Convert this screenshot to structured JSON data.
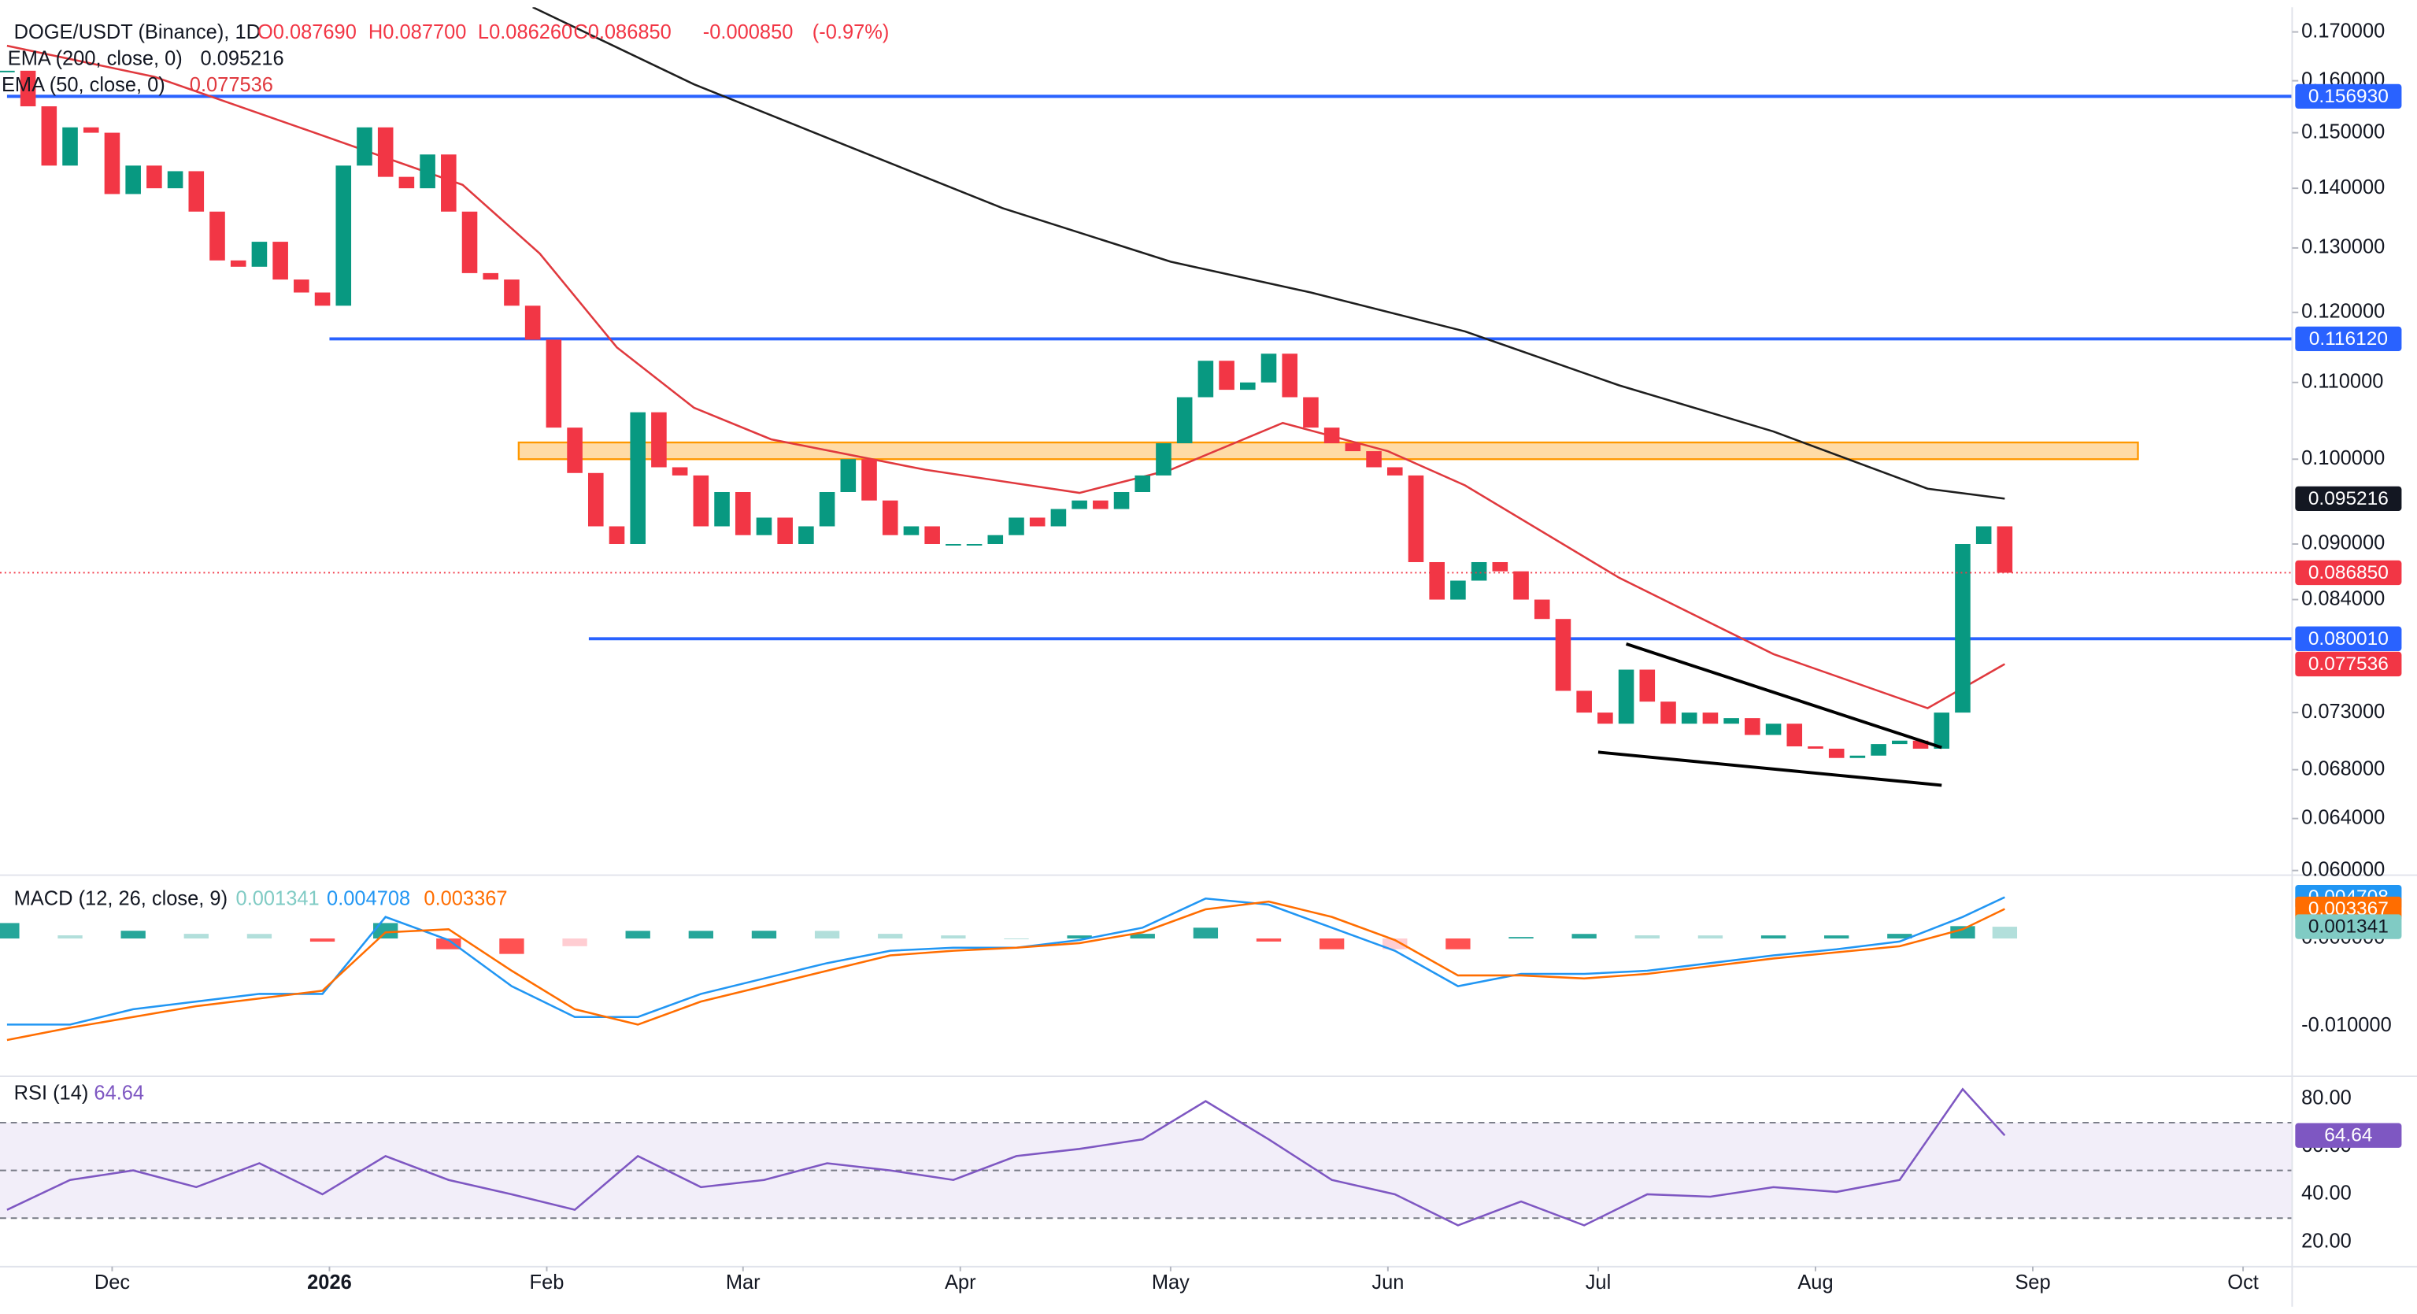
{
  "chart_data": [
    {
      "type": "candlestick",
      "title": "DOGE/USDT (Binance), 1D",
      "ohlc": [
        {
          "value": 0.08769,
          "label": "O0.087690"
        },
        {
          "value": 0.0877,
          "label": "H0.087700"
        },
        {
          "value": 0.08626,
          "label": "L0.086260"
        },
        {
          "value": 0.08685,
          "label": "C0.086850"
        }
      ],
      "change": {
        "value": -0.00085,
        "label": "-0.000850"
      },
      "change_pct": {
        "value": -0.97,
        "label": "(-0.97%)"
      },
      "header_color": "#f23645",
      "log_scale": true,
      "xlim": [
        -1,
        326
      ],
      "ylim": [
        0.06,
        0.17
      ],
      "yticks": [
        {
          "value": 0.17,
          "label": "0.170000"
        },
        {
          "value": 0.16,
          "label": "0.160000"
        },
        {
          "value": 0.15,
          "label": "0.150000"
        },
        {
          "value": 0.14,
          "label": "0.140000"
        },
        {
          "value": 0.13,
          "label": "0.130000"
        },
        {
          "value": 0.12,
          "label": "0.120000"
        },
        {
          "value": 0.11,
          "label": "0.110000"
        },
        {
          "value": 0.1,
          "label": "0.100000"
        },
        {
          "value": 0.09,
          "label": "0.090000"
        },
        {
          "value": 0.084,
          "label": "0.084000"
        },
        {
          "value": 0.073,
          "label": "0.073000"
        },
        {
          "value": 0.068,
          "label": "0.068000"
        },
        {
          "value": 0.064,
          "label": "0.064000"
        },
        {
          "value": 0.06,
          "label": "0.060000"
        }
      ],
      "up_color": "#089981",
      "down_color": "#f23645",
      "x": [
        0,
        3,
        6,
        9,
        12,
        15,
        18,
        21,
        24,
        27,
        30,
        33,
        36,
        39,
        42,
        45,
        48,
        51,
        54,
        57,
        60,
        63,
        66,
        69,
        72,
        75,
        78,
        81,
        84,
        87,
        90,
        93,
        96,
        99,
        102,
        105,
        108,
        111,
        114,
        117,
        120,
        123,
        126,
        129,
        132,
        135,
        138,
        141,
        144,
        147,
        150,
        153,
        156,
        159,
        162,
        165,
        168,
        171,
        174,
        177,
        180,
        183,
        186,
        189,
        192,
        195,
        198,
        201,
        204,
        207,
        210,
        213,
        216,
        219,
        222,
        225,
        228,
        231,
        234,
        237,
        240,
        243,
        246,
        249,
        252,
        255,
        258,
        261,
        264,
        267,
        270,
        273,
        276,
        279,
        282,
        285
      ],
      "close": [
        0.162,
        0.155,
        0.144,
        0.151,
        0.15,
        0.139,
        0.144,
        0.14,
        0.143,
        0.136,
        0.128,
        0.127,
        0.131,
        0.125,
        0.123,
        0.121,
        0.144,
        0.151,
        0.142,
        0.14,
        0.146,
        0.136,
        0.126,
        0.125,
        0.121,
        0.116,
        0.104,
        0.0983,
        0.092,
        0.09,
        0.106,
        0.099,
        0.098,
        0.092,
        0.096,
        0.091,
        0.093,
        0.09,
        0.092,
        0.096,
        0.1,
        0.095,
        0.091,
        0.092,
        0.09,
        0.09,
        0.09,
        0.091,
        0.093,
        0.092,
        0.094,
        0.095,
        0.094,
        0.096,
        0.098,
        0.102,
        0.108,
        0.113,
        0.109,
        0.11,
        0.114,
        0.108,
        0.104,
        0.102,
        0.101,
        0.099,
        0.098,
        0.088,
        0.084,
        0.086,
        0.088,
        0.087,
        0.084,
        0.082,
        0.075,
        0.073,
        0.072,
        0.077,
        0.074,
        0.072,
        0.073,
        0.072,
        0.0725,
        0.071,
        0.072,
        0.07,
        0.0698,
        0.069,
        0.0692,
        0.0702,
        0.0705,
        0.0698,
        0.073,
        0.09,
        0.092,
        0.08685
      ],
      "last_price": {
        "value": 0.08685,
        "label": "0.086850",
        "color": "#f23645"
      },
      "lines": [
        {
          "name": "EMA (200, close, 0)",
          "color": "#1e1e1e",
          "box_color": "#131722",
          "x": [
            75,
            98,
            120,
            142,
            166,
            186,
            208,
            230,
            252,
            274,
            285
          ],
          "values": [
            0.1753,
            0.1593,
            0.1475,
            0.1366,
            0.1278,
            0.123,
            0.1172,
            0.1096,
            0.1035,
            0.0964,
            0.095216
          ]
        },
        {
          "name": "EMA (50, close, 0)",
          "color": "#e0393e",
          "box_color": "#f23645",
          "x": [
            0,
            21,
            43,
            65,
            76,
            87,
            98,
            109,
            131,
            153,
            166,
            182,
            197,
            208,
            230,
            252,
            274,
            285
          ],
          "values": [
            0.1671,
            0.1608,
            0.1504,
            0.1406,
            0.1291,
            0.1149,
            0.1066,
            0.1025,
            0.0987,
            0.0959,
            0.0987,
            0.1046,
            0.101,
            0.0968,
            0.0863,
            0.0785,
            0.0734,
            0.077536
          ]
        }
      ],
      "levels": [
        {
          "value": 0.15693,
          "label": "0.156930",
          "x": 0
        },
        {
          "value": 0.11612,
          "label": "0.116120",
          "x": 46
        },
        {
          "value": 0.08001,
          "label": "0.080010",
          "x": 83
        }
      ],
      "level_color": "#2962ff",
      "zone": {
        "x": [
          73,
          304
        ],
        "values": [
          0.1,
          0.1021
        ],
        "color": "#ff9800"
      },
      "trendlines": [
        {
          "x": [
            231,
            276
          ],
          "values": [
            0.0795,
            0.0699
          ]
        },
        {
          "x": [
            227,
            276
          ],
          "values": [
            0.0695,
            0.0667
          ]
        }
      ]
    },
    {
      "type": "macd",
      "title": "MACD (12, 26, close, 9)",
      "xlim": [
        -1,
        326
      ],
      "ylim": [
        -0.0151,
        0.0067
      ],
      "yticks": [
        {
          "value": 0,
          "label": "0.000000"
        },
        {
          "value": -0.01,
          "label": "-0.010000"
        }
      ],
      "x": [
        0,
        9,
        18,
        27,
        36,
        45,
        54,
        63,
        72,
        81,
        90,
        99,
        108,
        117,
        126,
        135,
        144,
        153,
        162,
        171,
        180,
        189,
        198,
        207,
        216,
        225,
        234,
        243,
        252,
        261,
        270,
        279,
        285
      ],
      "macd": [
        -0.00982,
        -0.00982,
        -0.00807,
        -0.00719,
        -0.00632,
        -0.00632,
        0.00246,
        -0.00018,
        -0.00544,
        -0.00895,
        -0.00895,
        -0.00632,
        -0.00456,
        -0.00281,
        -0.0014,
        -0.00105,
        -0.00105,
        -0.00018,
        0.00123,
        0.00456,
        0.00386,
        0.00123,
        -0.0014,
        -0.00544,
        -0.00404,
        -0.00404,
        -0.00368,
        -0.00281,
        -0.00193,
        -0.00123,
        -0.00035,
        0.00246,
        0.004708
      ],
      "signal": [
        -0.01158,
        -0.01018,
        -0.00895,
        -0.00772,
        -0.00684,
        -0.00596,
        0.0007,
        0.00105,
        -0.00368,
        -0.00807,
        -0.00982,
        -0.00719,
        -0.00544,
        -0.00368,
        -0.00193,
        -0.0014,
        -0.00105,
        -0.00053,
        0.0007,
        0.00333,
        0.00421,
        0.00246,
        -0.00018,
        -0.00421,
        -0.00421,
        -0.00456,
        -0.00404,
        -0.00316,
        -0.00228,
        -0.00158,
        -0.00088,
        0.00105,
        0.003367
      ],
      "histogram": [
        0.00176,
        0.00036,
        0.00088,
        0.00053,
        0.00052,
        -0.00036,
        0.00176,
        -0.00123,
        -0.00176,
        -0.00088,
        0.00087,
        0.00087,
        0.00088,
        0.00087,
        0.00053,
        0.00035,
        0,
        0.00035,
        0.00053,
        0.00123,
        -0.00035,
        -0.00123,
        -0.00122,
        -0.00123,
        0.00017,
        0.00052,
        0.00036,
        0.00035,
        0.00035,
        0.00035,
        0.00053,
        0.00141,
        0.001341
      ],
      "macd_color": "#2196f3",
      "signal_color": "#ff6d00",
      "hist_colors": [
        "#26a69a",
        "#b2dfdb",
        "#ff5252",
        "#ffcdd2"
      ],
      "hist_label_color": "#80cbc4"
    },
    {
      "type": "rsi",
      "title": "RSI (14)",
      "xlim": [
        -1,
        326
      ],
      "ylim": [
        11,
        86.5
      ],
      "yticks": [
        {
          "value": 80,
          "label": "80.00"
        },
        {
          "value": 60,
          "label": "60.00"
        },
        {
          "value": 40,
          "label": "40.00"
        },
        {
          "value": 20,
          "label": "20.00"
        }
      ],
      "xticks": [
        {
          "value": 15,
          "label": "Dec"
        },
        {
          "value": 46,
          "label": "2026"
        },
        {
          "value": 77,
          "label": "Feb"
        },
        {
          "value": 105,
          "label": "Mar"
        },
        {
          "value": 136,
          "label": "Apr"
        },
        {
          "value": 166,
          "label": "May"
        },
        {
          "value": 197,
          "label": "Jun"
        },
        {
          "value": 227,
          "label": "Jul"
        },
        {
          "value": 258,
          "label": "Aug"
        },
        {
          "value": 289,
          "label": "Sep"
        },
        {
          "value": 319,
          "label": "Oct"
        }
      ],
      "band": [
        30,
        70
      ],
      "midline": 50,
      "color": "#7e57c2",
      "x": [
        0,
        9,
        18,
        27,
        36,
        45,
        54,
        63,
        72,
        81,
        90,
        99,
        108,
        117,
        126,
        135,
        144,
        153,
        162,
        171,
        180,
        189,
        198,
        207,
        216,
        225,
        234,
        243,
        252,
        261,
        270,
        279,
        285
      ],
      "values": [
        33.5,
        46,
        50,
        43,
        53,
        40,
        56,
        46,
        40,
        33.5,
        56,
        43,
        46,
        53,
        50,
        46,
        56,
        59,
        63,
        79,
        63,
        46,
        40,
        27,
        37,
        27,
        40,
        39,
        43,
        41,
        46,
        84,
        64.64
      ]
    }
  ]
}
